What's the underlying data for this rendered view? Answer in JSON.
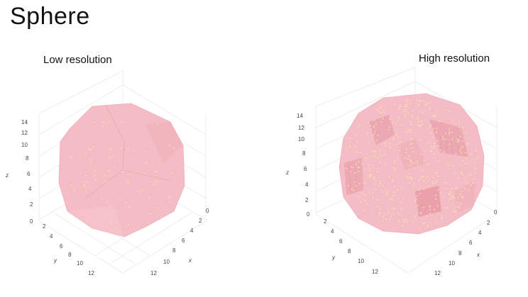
{
  "slide": {
    "title": "Sphere",
    "panels": [
      {
        "id": "low",
        "label": "Low resolution"
      },
      {
        "id": "high",
        "label": "High resolution"
      }
    ]
  },
  "axes": {
    "z": {
      "label": "z",
      "ticks": [
        "0",
        "2",
        "4",
        "6",
        "8",
        "10",
        "12",
        "14"
      ]
    },
    "y": {
      "label": "y",
      "ticks": [
        "2",
        "4",
        "6",
        "8",
        "10",
        "12"
      ]
    },
    "x": {
      "label": "x",
      "ticks": [
        "0",
        "2",
        "4",
        "6",
        "8",
        "10",
        "12"
      ]
    }
  },
  "colors": {
    "surface": "#f4bcc4",
    "surface_dark": "#eaa3ae",
    "points": "#f7e7a6",
    "grid": "#dcdcdc"
  }
}
